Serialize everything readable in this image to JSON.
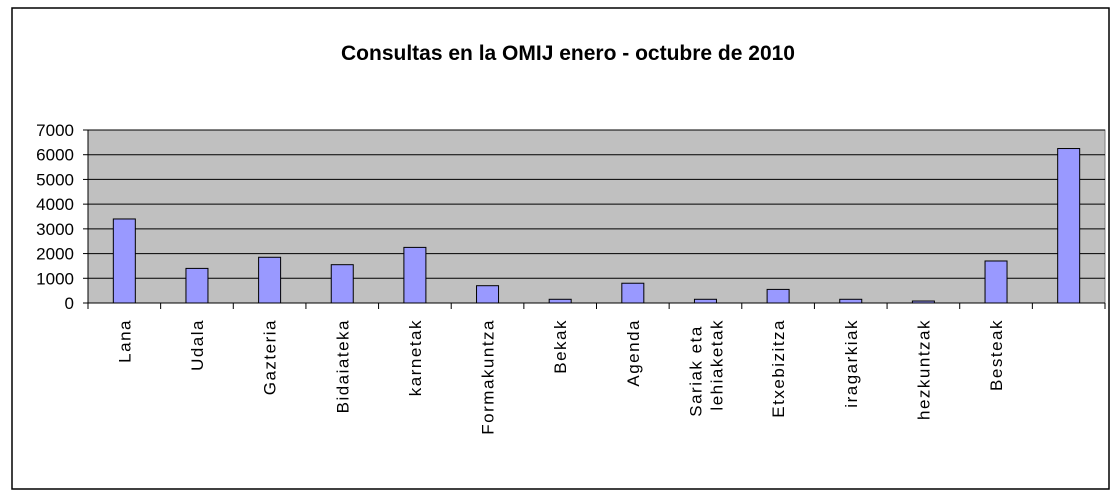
{
  "chart_data": {
    "type": "bar",
    "title": "Consultas en la OMIJ enero - octubre de 2010",
    "categories": [
      "Lana",
      "Udala",
      "Gazteria",
      "Bidaiateka",
      "karnetak",
      "Formakuntza",
      "Bekak",
      "Agenda",
      "Sariak eta lehiaketak",
      "Etxebizitza",
      "iragarkiak",
      "hezkuntzak",
      "Besteak",
      null
    ],
    "values": [
      3400,
      1400,
      1850,
      1550,
      2250,
      700,
      150,
      800,
      150,
      550,
      150,
      80,
      1700,
      6250
    ],
    "color": "#9999ff",
    "ylim": [
      0,
      7000
    ],
    "yticks": [
      0,
      1000,
      2000,
      3000,
      4000,
      5000,
      6000,
      7000
    ],
    "grid": true
  }
}
